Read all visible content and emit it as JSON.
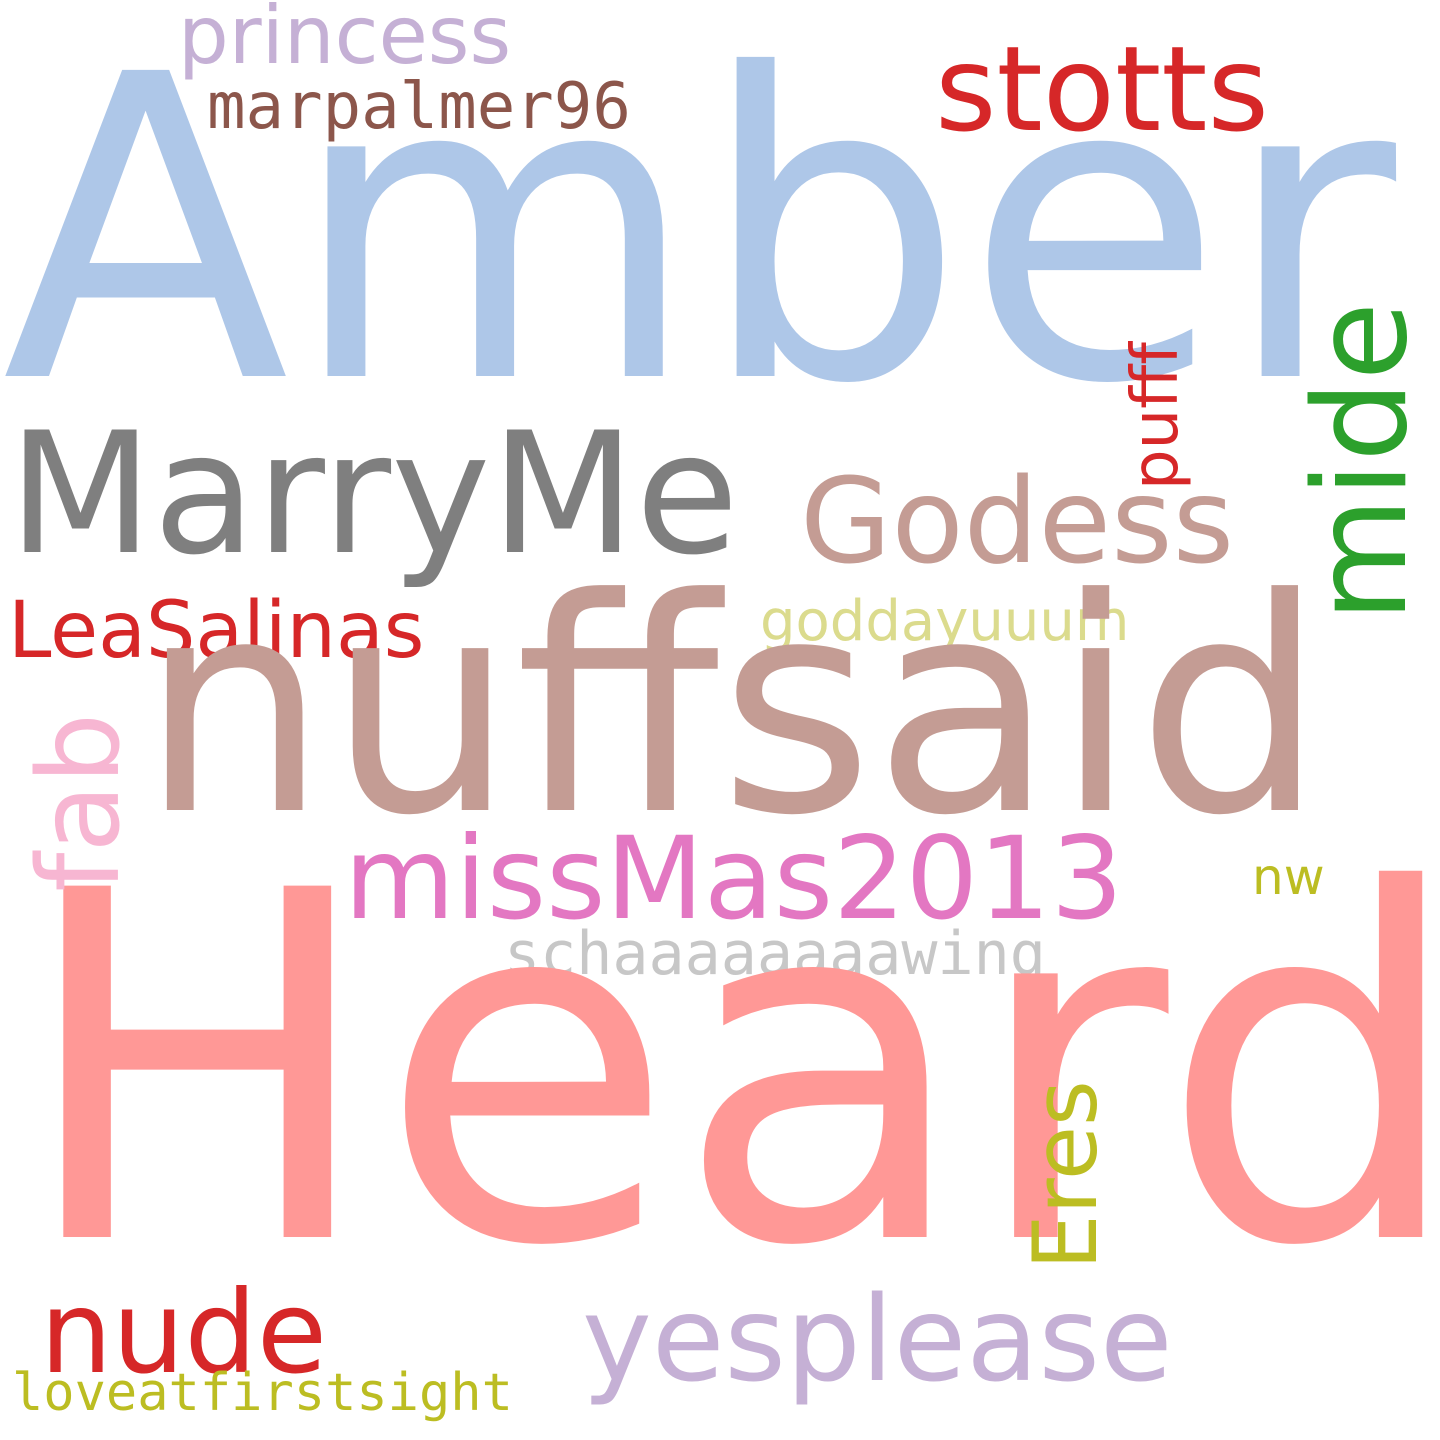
{
  "words": {
    "amber": {
      "text": "Amber",
      "color": "#aec7e8"
    },
    "heard": {
      "text": "Heard",
      "color": "#ff9896"
    },
    "nuffsaid": {
      "text": "nuffsaid",
      "color": "#c49c94"
    },
    "marryme": {
      "text": "MarryMe",
      "color": "#7f7f7f"
    },
    "mide": {
      "text": "mide",
      "color": "#2ca02c"
    },
    "godess": {
      "text": "Godess",
      "color": "#c49c94"
    },
    "stotts": {
      "text": "stotts",
      "color": "#d62728"
    },
    "princess": {
      "text": "princess",
      "color": "#c5b0d5"
    },
    "marpalmer96": {
      "text": "marpalmer96",
      "color": "#8c564b"
    },
    "leasalinas": {
      "text": "LeaSalinas",
      "color": "#d62728"
    },
    "goddayuuum": {
      "text": "goddayuuum",
      "color": "#dbdb8d"
    },
    "pufff": {
      "text": "pufff",
      "color": "#d62728"
    },
    "fab": {
      "text": "fab",
      "color": "#f7b6d2"
    },
    "missmas2013": {
      "text": "missMas2013",
      "color": "#e377c2"
    },
    "nw": {
      "text": "nw",
      "color": "#bcbd22"
    },
    "schaaaaaaaawing": {
      "text": "schaaaaaaaawing",
      "color": "#c7c7c7"
    },
    "eres": {
      "text": "Eres",
      "color": "#bcbd22"
    },
    "nude": {
      "text": "nude",
      "color": "#d62728"
    },
    "yesplease": {
      "text": "yesplease",
      "color": "#c5b0d5"
    },
    "loveatfirstsight": {
      "text": "loveatfirstsight",
      "color": "#bcbd22"
    }
  }
}
